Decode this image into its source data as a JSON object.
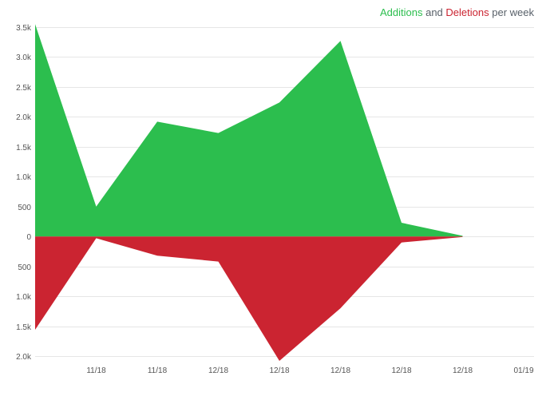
{
  "chart_data": {
    "type": "area",
    "title_parts": {
      "additions": "Additions",
      "and": "and",
      "deletions": "Deletions",
      "suffix": "per week"
    },
    "x_labels": [
      "",
      "11/18",
      "11/18",
      "12/18",
      "12/18",
      "12/18",
      "12/18",
      "12/18",
      "01/19"
    ],
    "series": [
      {
        "name": "Additions",
        "color": "#2cbe4e",
        "values": [
          3550,
          500,
          1920,
          1730,
          2240,
          3270,
          230,
          10,
          null
        ]
      },
      {
        "name": "Deletions",
        "color": "#cb2431",
        "values": [
          1560,
          30,
          320,
          420,
          2080,
          1200,
          100,
          10,
          null
        ]
      }
    ],
    "y_ticks": [
      {
        "value": 3500,
        "label": "3.5k"
      },
      {
        "value": 3000,
        "label": "3.0k"
      },
      {
        "value": 2500,
        "label": "2.5k"
      },
      {
        "value": 2000,
        "label": "2.0k"
      },
      {
        "value": 1500,
        "label": "1.5k"
      },
      {
        "value": 1000,
        "label": "1.0k"
      },
      {
        "value": 500,
        "label": "500"
      },
      {
        "value": 0,
        "label": "0"
      },
      {
        "value": -500,
        "label": "500"
      },
      {
        "value": -1000,
        "label": "1.0k"
      },
      {
        "value": -1500,
        "label": "1.5k"
      },
      {
        "value": -2000,
        "label": "2.0k"
      }
    ],
    "ylim": [
      -2000,
      3500
    ],
    "grid": true
  }
}
